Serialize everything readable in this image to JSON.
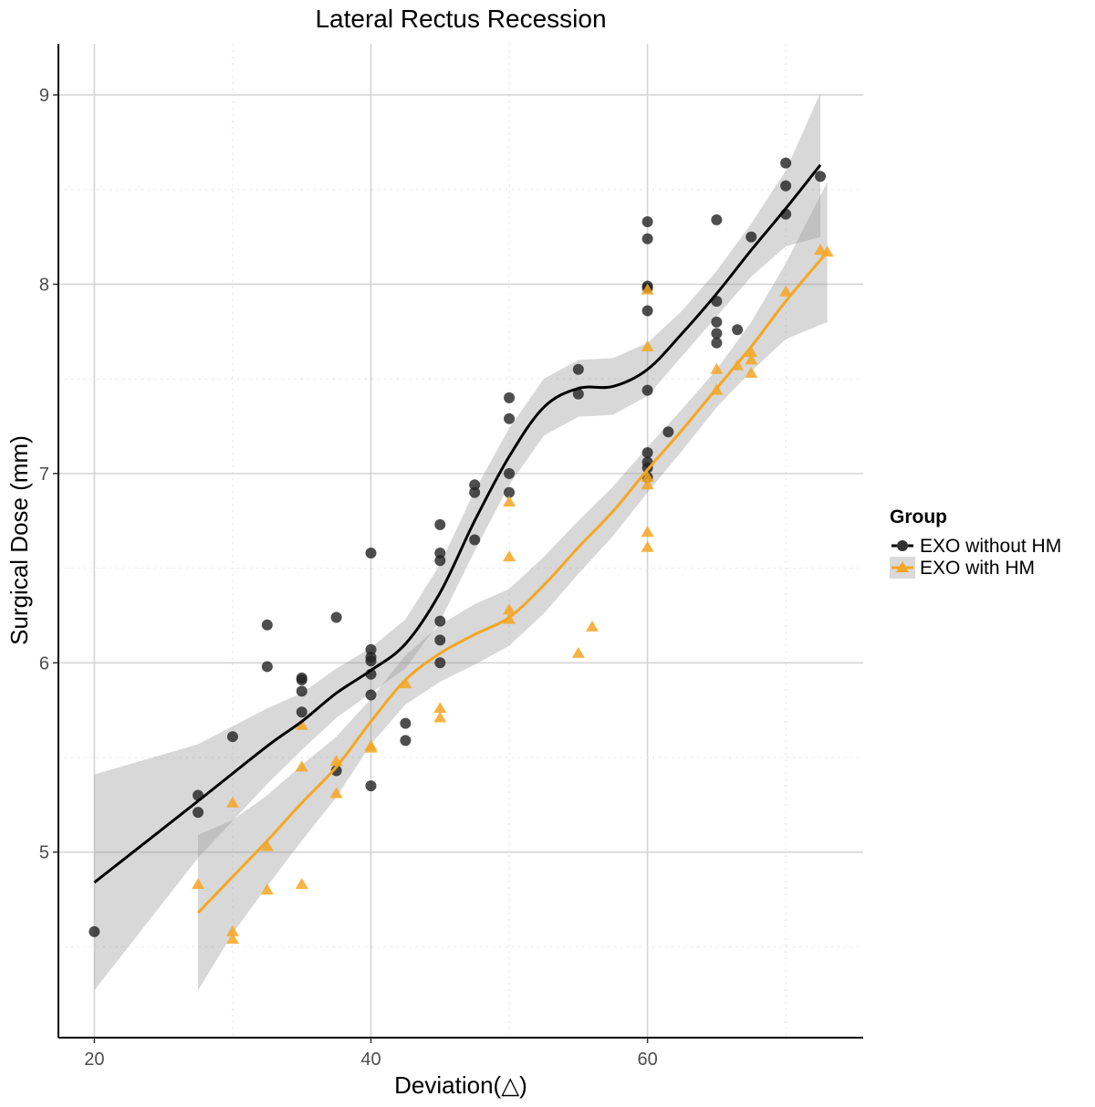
{
  "chart_data": {
    "type": "scatter",
    "title": "Lateral Rectus Recession",
    "xlabel": "Deviation(△)",
    "ylabel": "Surgical Dose (mm)",
    "xlim": [
      17.4,
      75.6
    ],
    "ylim": [
      4.02,
      9.27
    ],
    "xticks": [
      20,
      40,
      60
    ],
    "yticks": [
      5,
      6,
      7,
      8,
      9
    ],
    "grid": true,
    "legend": {
      "title": "Group",
      "placement": "right"
    },
    "series": [
      {
        "name": "EXO without HM",
        "marker": "circle",
        "color": "#000000",
        "points": [
          [
            20,
            4.58
          ],
          [
            27.5,
            5.3
          ],
          [
            27.5,
            5.21
          ],
          [
            30,
            5.61
          ],
          [
            32.5,
            6.2
          ],
          [
            32.5,
            5.98
          ],
          [
            35,
            5.92
          ],
          [
            35,
            5.91
          ],
          [
            35,
            5.85
          ],
          [
            35,
            5.74
          ],
          [
            37.5,
            6.24
          ],
          [
            37.5,
            5.43
          ],
          [
            40,
            6.58
          ],
          [
            40,
            6.07
          ],
          [
            40,
            6.03
          ],
          [
            40,
            6.01
          ],
          [
            40,
            5.94
          ],
          [
            40,
            5.83
          ],
          [
            40,
            5.35
          ],
          [
            42.5,
            5.68
          ],
          [
            42.5,
            5.59
          ],
          [
            45,
            6.73
          ],
          [
            45,
            6.58
          ],
          [
            45,
            6.54
          ],
          [
            45,
            6.22
          ],
          [
            45,
            6.12
          ],
          [
            45,
            6.0
          ],
          [
            47.5,
            6.94
          ],
          [
            47.5,
            6.9
          ],
          [
            47.5,
            6.65
          ],
          [
            50,
            7.4
          ],
          [
            50,
            7.29
          ],
          [
            50,
            7.0
          ],
          [
            50,
            6.9
          ],
          [
            55,
            7.55
          ],
          [
            55,
            7.42
          ],
          [
            60,
            8.33
          ],
          [
            60,
            8.24
          ],
          [
            60,
            7.99
          ],
          [
            60,
            7.98
          ],
          [
            60,
            7.86
          ],
          [
            60,
            7.44
          ],
          [
            60,
            7.11
          ],
          [
            60,
            7.06
          ],
          [
            60,
            7.03
          ],
          [
            60,
            6.98
          ],
          [
            61.5,
            7.22
          ],
          [
            65,
            8.34
          ],
          [
            65,
            7.91
          ],
          [
            65,
            7.8
          ],
          [
            65,
            7.74
          ],
          [
            65,
            7.69
          ],
          [
            66.5,
            7.76
          ],
          [
            67.5,
            8.25
          ],
          [
            70,
            8.64
          ],
          [
            70,
            8.52
          ],
          [
            70,
            8.37
          ],
          [
            72.5,
            8.57
          ]
        ],
        "smooth": [
          [
            20,
            4.84
          ],
          [
            27.5,
            5.27
          ],
          [
            32.5,
            5.56
          ],
          [
            35,
            5.69
          ],
          [
            37.5,
            5.84
          ],
          [
            40,
            5.96
          ],
          [
            42.5,
            6.1
          ],
          [
            45,
            6.37
          ],
          [
            47.5,
            6.75
          ],
          [
            50,
            7.09
          ],
          [
            52.5,
            7.35
          ],
          [
            55,
            7.45
          ],
          [
            57.5,
            7.46
          ],
          [
            60,
            7.55
          ],
          [
            62.5,
            7.74
          ],
          [
            65,
            7.95
          ],
          [
            67.5,
            8.18
          ],
          [
            70,
            8.4
          ],
          [
            72.5,
            8.63
          ]
        ],
        "ci_halfwidth": [
          0.57,
          0.3,
          0.2,
          0.15,
          0.13,
          0.12,
          0.13,
          0.15,
          0.16,
          0.15,
          0.15,
          0.15,
          0.15,
          0.14,
          0.12,
          0.12,
          0.14,
          0.2,
          0.38
        ]
      },
      {
        "name": "EXO with HM",
        "marker": "triangle",
        "color": "#F5A623",
        "points": [
          [
            27.5,
            4.83
          ],
          [
            30,
            5.26
          ],
          [
            30,
            4.58
          ],
          [
            30,
            4.54
          ],
          [
            32.5,
            5.03
          ],
          [
            32.5,
            4.8
          ],
          [
            35,
            5.67
          ],
          [
            35,
            5.45
          ],
          [
            35,
            4.83
          ],
          [
            37.5,
            5.48
          ],
          [
            37.5,
            5.31
          ],
          [
            40,
            5.56
          ],
          [
            40,
            5.55
          ],
          [
            42.5,
            5.89
          ],
          [
            45,
            5.76
          ],
          [
            45,
            5.71
          ],
          [
            50,
            6.85
          ],
          [
            50,
            6.56
          ],
          [
            50,
            6.28
          ],
          [
            50,
            6.23
          ],
          [
            55,
            6.05
          ],
          [
            56,
            6.19
          ],
          [
            60,
            7.97
          ],
          [
            60,
            7.67
          ],
          [
            60,
            6.98
          ],
          [
            60,
            6.94
          ],
          [
            60,
            6.69
          ],
          [
            60,
            6.61
          ],
          [
            65,
            7.55
          ],
          [
            65,
            7.44
          ],
          [
            66.5,
            7.57
          ],
          [
            67.5,
            7.64
          ],
          [
            67.5,
            7.6
          ],
          [
            67.5,
            7.53
          ],
          [
            70,
            7.96
          ],
          [
            72.5,
            8.18
          ],
          [
            73,
            8.17
          ]
        ],
        "smooth": [
          [
            27.5,
            4.68
          ],
          [
            30,
            4.87
          ],
          [
            32.5,
            5.06
          ],
          [
            35,
            5.26
          ],
          [
            37.5,
            5.45
          ],
          [
            40,
            5.69
          ],
          [
            42.5,
            5.91
          ],
          [
            45,
            6.05
          ],
          [
            47.5,
            6.15
          ],
          [
            50,
            6.24
          ],
          [
            52.5,
            6.41
          ],
          [
            55,
            6.61
          ],
          [
            57.5,
            6.8
          ],
          [
            60,
            7.02
          ],
          [
            62.5,
            7.23
          ],
          [
            65,
            7.45
          ],
          [
            67.5,
            7.67
          ],
          [
            70,
            7.91
          ],
          [
            73,
            8.17
          ]
        ],
        "ci_halfwidth": [
          0.41,
          0.3,
          0.24,
          0.2,
          0.16,
          0.12,
          0.13,
          0.15,
          0.16,
          0.15,
          0.15,
          0.14,
          0.13,
          0.12,
          0.11,
          0.1,
          0.13,
          0.2,
          0.37
        ]
      }
    ]
  }
}
